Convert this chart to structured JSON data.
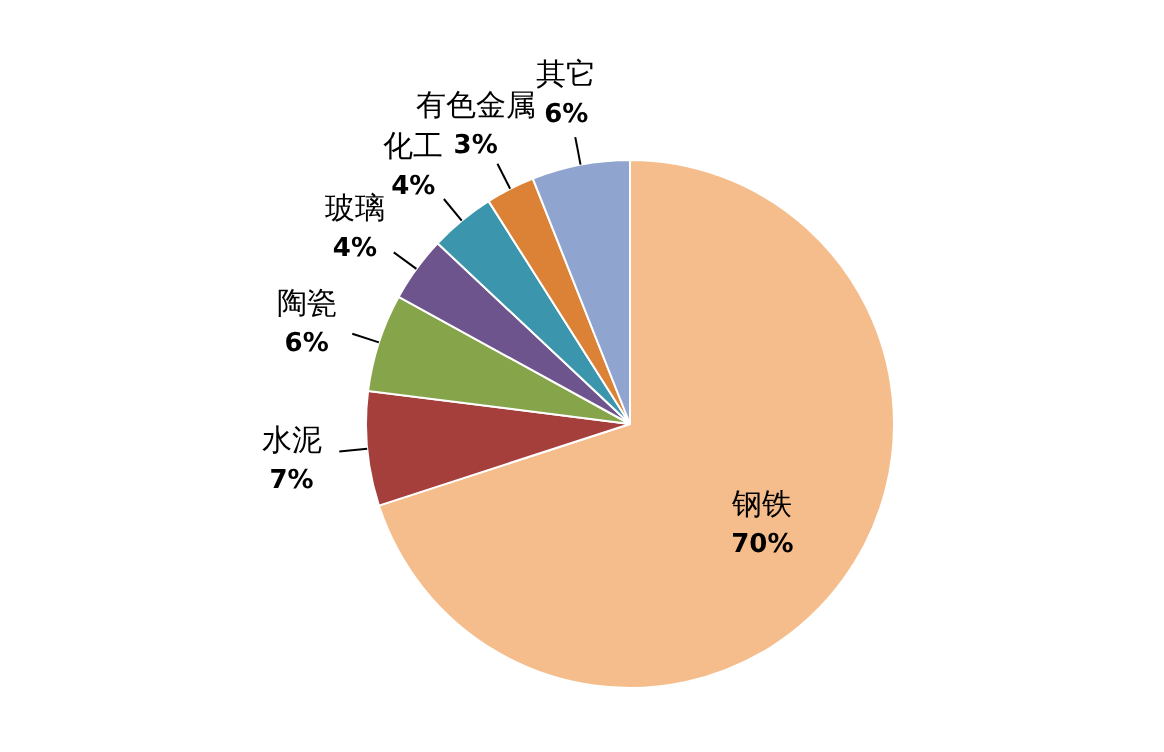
{
  "chart_data": {
    "type": "pie",
    "categories": [
      "钢铁",
      "水泥",
      "陶瓷",
      "玻璃",
      "化工",
      "有色金属",
      "其它"
    ],
    "values": [
      70,
      7,
      6,
      4,
      4,
      3,
      6
    ],
    "value_labels": [
      "70%",
      "7%",
      "6%",
      "4%",
      "4%",
      "3%",
      "6%"
    ],
    "colors": [
      "#f5bd8c",
      "#a53f3c",
      "#86a44a",
      "#6e548d",
      "#3b96ad",
      "#db8237",
      "#8fa5cf"
    ]
  }
}
